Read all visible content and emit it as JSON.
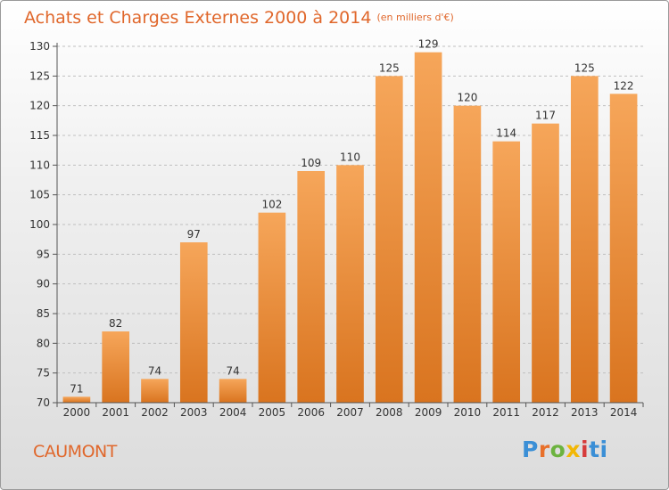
{
  "title": "Achats et Charges Externes 2000 à 2014",
  "unit": "(en milliers d'€)",
  "place": "CAUMONT",
  "logo": {
    "text": "Proxiti",
    "parts": [
      "P",
      "r",
      "o",
      "x",
      "i",
      "ti"
    ],
    "colors": [
      "#3b8fd6",
      "#e8702a",
      "#6cb33f",
      "#f2b705",
      "#d63b3b",
      "#3b8fd6"
    ]
  },
  "colors": {
    "bar_top": "#f6a65a",
    "bar_bottom": "#d9741f",
    "title": "#e0672b",
    "axis": "#555555"
  },
  "chart_data": {
    "type": "bar",
    "categories": [
      "2000",
      "2001",
      "2002",
      "2003",
      "2004",
      "2005",
      "2006",
      "2007",
      "2008",
      "2009",
      "2010",
      "2011",
      "2012",
      "2013",
      "2014"
    ],
    "values": [
      71,
      82,
      74,
      97,
      74,
      102,
      109,
      110,
      125,
      129,
      120,
      114,
      117,
      125,
      122
    ],
    "ylim": [
      70,
      130
    ],
    "yticks": [
      70,
      75,
      80,
      85,
      90,
      95,
      100,
      105,
      110,
      115,
      120,
      125,
      130
    ],
    "grid": true,
    "legend": "none",
    "title": "Achats et Charges Externes 2000 à 2014",
    "xlabel": "",
    "ylabel": ""
  }
}
